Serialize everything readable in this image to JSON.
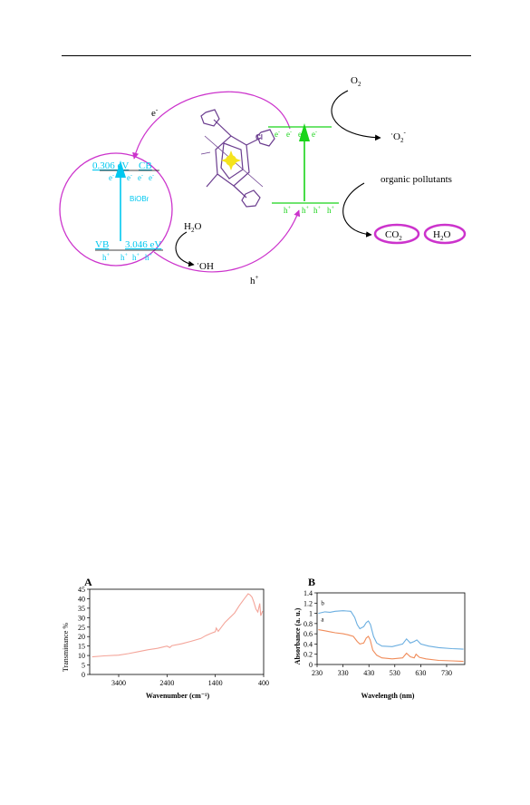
{
  "mechanism": {
    "bioBr_label": "BiOBr",
    "cb_energy": "0.306 eV",
    "cb_label": "CB",
    "vb_label": "VB",
    "vb_energy": "3.046 eV",
    "electron": "e",
    "hole": "h",
    "electron_sup": "-",
    "hole_sup": "+",
    "transfer_electron": "e",
    "transfer_hole": "h",
    "cl_label": "Cl",
    "o2": "O",
    "o2_sub": "2",
    "superoxide": "O",
    "superoxide_sub": "2",
    "superoxide_sup": "-",
    "superoxide_dot": "·",
    "water": "H",
    "water_sub": "2",
    "water_tail": "O",
    "hydroxyl": "OH",
    "hydroxyl_dot": "·",
    "organic": "organic pollutants",
    "co2": "CO",
    "co2_sub": "2",
    "h2o_bubble": "H",
    "h2o_bubble_sub": "2",
    "h2o_bubble_tail": "O",
    "colors": {
      "cyan": "#00c8f0",
      "green": "#19d419",
      "magenta": "#cc33cc",
      "purple": "#6b3d8f"
    }
  },
  "chart_data": [
    {
      "type": "line",
      "panel_label": "A",
      "xlabel": "Wavenumber",
      "xlabel_unit": "(cm⁻¹)",
      "ylabel": "Transmittance %",
      "xlim": [
        4000,
        400
      ],
      "ylim": [
        0,
        45
      ],
      "xticks": [
        "3400",
        "2400",
        "1400",
        "400"
      ],
      "xtick_values": [
        3400,
        2400,
        1400,
        400
      ],
      "yticks": [
        "0",
        "5",
        "10",
        "15",
        "20",
        "25",
        "30",
        "35",
        "40",
        "45"
      ],
      "ytick_values": [
        0,
        5,
        10,
        15,
        20,
        25,
        30,
        35,
        40,
        45
      ],
      "series": [
        {
          "color": "#f4a59a",
          "points": [
            [
              3950,
              9.3
            ],
            [
              3700,
              9.8
            ],
            [
              3400,
              10.2
            ],
            [
              3200,
              11.0
            ],
            [
              3000,
              12.0
            ],
            [
              2800,
              13.0
            ],
            [
              2600,
              13.8
            ],
            [
              2400,
              15.0
            ],
            [
              2340,
              14.2
            ],
            [
              2300,
              15.2
            ],
            [
              2100,
              16.2
            ],
            [
              1900,
              17.5
            ],
            [
              1700,
              19.0
            ],
            [
              1600,
              20.5
            ],
            [
              1500,
              21.6
            ],
            [
              1400,
              22.6
            ],
            [
              1380,
              24.5
            ],
            [
              1340,
              22.8
            ],
            [
              1200,
              27.5
            ],
            [
              1100,
              30.0
            ],
            [
              1000,
              32.5
            ],
            [
              900,
              36.5
            ],
            [
              800,
              40.0
            ],
            [
              720,
              42.6
            ],
            [
              680,
              42.0
            ],
            [
              640,
              40.8
            ],
            [
              600,
              38.0
            ],
            [
              560,
              34.5
            ],
            [
              520,
              33.0
            ],
            [
              480,
              37.5
            ],
            [
              460,
              31.0
            ],
            [
              420,
              33.5
            ]
          ]
        }
      ]
    },
    {
      "type": "line",
      "panel_label": "B",
      "xlabel": "Wavelength (nm)",
      "ylabel": "Absorbance (a. u.)",
      "xlim": [
        230,
        800
      ],
      "ylim": [
        0,
        1.4
      ],
      "xticks": [
        "230",
        "330",
        "430",
        "530",
        "630",
        "730"
      ],
      "xtick_values": [
        230,
        330,
        430,
        530,
        630,
        730
      ],
      "yticks": [
        "0",
        "0.2",
        "0.4",
        "0.6",
        "0.8",
        "1",
        "1.2",
        "1.4"
      ],
      "ytick_values": [
        0,
        0.2,
        0.4,
        0.6,
        0.8,
        1.0,
        1.2,
        1.4
      ],
      "series": [
        {
          "name": "a",
          "color": "#f08c5a",
          "points": [
            [
              235,
              0.68
            ],
            [
              260,
              0.66
            ],
            [
              280,
              0.64
            ],
            [
              300,
              0.62
            ],
            [
              330,
              0.6
            ],
            [
              350,
              0.58
            ],
            [
              370,
              0.55
            ],
            [
              385,
              0.45
            ],
            [
              395,
              0.4
            ],
            [
              410,
              0.42
            ],
            [
              420,
              0.52
            ],
            [
              428,
              0.55
            ],
            [
              435,
              0.48
            ],
            [
              445,
              0.28
            ],
            [
              460,
              0.18
            ],
            [
              480,
              0.13
            ],
            [
              520,
              0.11
            ],
            [
              560,
              0.13
            ],
            [
              575,
              0.22
            ],
            [
              590,
              0.15
            ],
            [
              605,
              0.13
            ],
            [
              612,
              0.2
            ],
            [
              625,
              0.14
            ],
            [
              650,
              0.11
            ],
            [
              700,
              0.08
            ],
            [
              750,
              0.07
            ],
            [
              795,
              0.06
            ]
          ]
        },
        {
          "name": "b",
          "color": "#6aaee0",
          "points": [
            [
              235,
              1.0
            ],
            [
              260,
              1.03
            ],
            [
              280,
              1.02
            ],
            [
              300,
              1.04
            ],
            [
              330,
              1.05
            ],
            [
              360,
              1.04
            ],
            [
              375,
              0.92
            ],
            [
              385,
              0.78
            ],
            [
              395,
              0.7
            ],
            [
              410,
              0.74
            ],
            [
              420,
              0.82
            ],
            [
              428,
              0.85
            ],
            [
              436,
              0.78
            ],
            [
              448,
              0.55
            ],
            [
              460,
              0.42
            ],
            [
              480,
              0.36
            ],
            [
              520,
              0.35
            ],
            [
              560,
              0.4
            ],
            [
              575,
              0.5
            ],
            [
              590,
              0.42
            ],
            [
              605,
              0.45
            ],
            [
              615,
              0.48
            ],
            [
              630,
              0.4
            ],
            [
              660,
              0.36
            ],
            [
              700,
              0.33
            ],
            [
              750,
              0.31
            ],
            [
              795,
              0.3
            ]
          ]
        }
      ]
    }
  ]
}
